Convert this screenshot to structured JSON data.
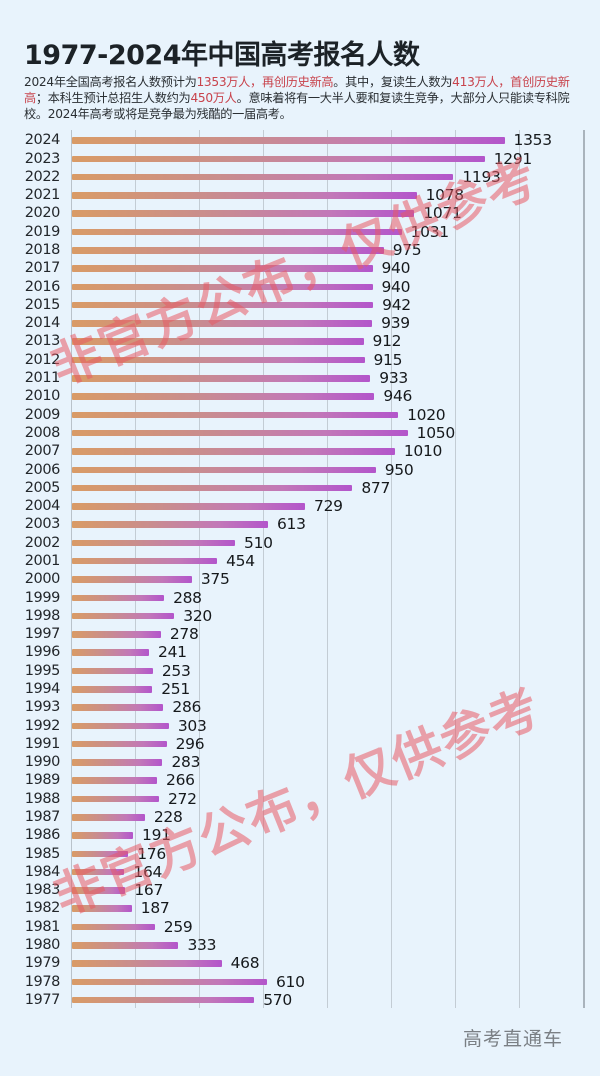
{
  "header": {
    "title": "1977-2024年中国高考报名人数",
    "subtitle": [
      {
        "text": "2024年全国高考报名人数预计为",
        "hl": false
      },
      {
        "text": "1353万人，再创历史新高",
        "hl": true
      },
      {
        "text": "。其中，复读生人数为",
        "hl": false
      },
      {
        "text": "413万人，首创历史新高",
        "hl": true
      },
      {
        "text": "；本科生预计总招生人数约为",
        "hl": false
      },
      {
        "text": "450万人",
        "hl": true
      },
      {
        "text": "。意味着将有一大半人要和复读生竞争，大部分人只能读专科院校。2024年高考或将是竞争最为残酷的一届高考。",
        "hl": false
      }
    ]
  },
  "watermarks": [
    "非官方公布，仅供参考",
    "非官方公布，仅供参考"
  ],
  "source": "高考直通车",
  "colors": {
    "background": "#e8f3fc",
    "bar_start": "#d99b66",
    "bar_end": "#b355cb",
    "highlight": "#c8434c",
    "watermark": "#e85a64"
  },
  "chart_data": {
    "type": "bar",
    "orientation": "horizontal",
    "title": "1977-2024年中国高考报名人数",
    "xlabel": "",
    "ylabel": "",
    "unit": "万人",
    "xlim": [
      0,
      1600
    ],
    "grid_step": 200,
    "grid": true,
    "categories": [
      "2024",
      "2023",
      "2022",
      "2021",
      "2020",
      "2019",
      "2018",
      "2017",
      "2016",
      "2015",
      "2014",
      "2013",
      "2012",
      "2011",
      "2010",
      "2009",
      "2008",
      "2007",
      "2006",
      "2005",
      "2004",
      "2003",
      "2002",
      "2001",
      "2000",
      "1999",
      "1998",
      "1997",
      "1996",
      "1995",
      "1994",
      "1993",
      "1992",
      "1991",
      "1990",
      "1989",
      "1988",
      "1987",
      "1986",
      "1985",
      "1984",
      "1983",
      "1982",
      "1981",
      "1980",
      "1979",
      "1978",
      "1977"
    ],
    "values": [
      1353,
      1291,
      1193,
      1078,
      1071,
      1031,
      975,
      940,
      940,
      942,
      939,
      912,
      915,
      933,
      946,
      1020,
      1050,
      1010,
      950,
      877,
      729,
      613,
      510,
      454,
      375,
      288,
      320,
      278,
      241,
      253,
      251,
      286,
      303,
      296,
      283,
      266,
      272,
      228,
      191,
      176,
      164,
      167,
      187,
      259,
      333,
      468,
      610,
      570
    ]
  }
}
